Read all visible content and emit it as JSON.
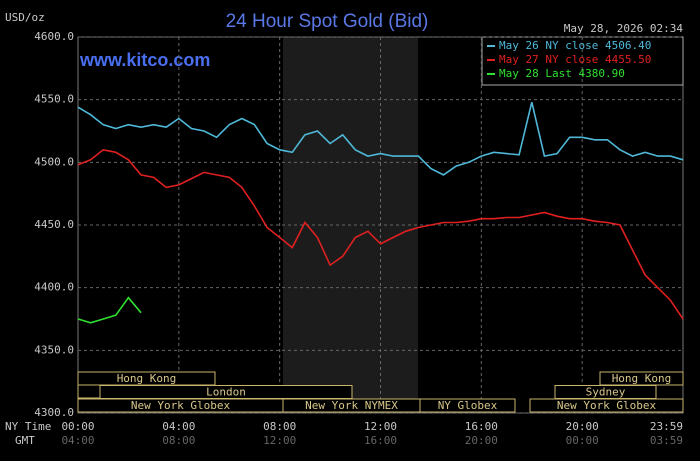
{
  "chart_data": {
    "type": "line",
    "title": "24 Hour Spot Gold (Bid)",
    "y_unit": "USD/oz",
    "website": "www.kitco.com",
    "timestamp": "May 28, 2026 02:34",
    "x": [
      0,
      0.5,
      1,
      1.5,
      2,
      2.5,
      3,
      3.5,
      4,
      4.5,
      5,
      5.5,
      6,
      6.5,
      7,
      7.5,
      8,
      8.5,
      9,
      9.5,
      10,
      10.5,
      11,
      11.5,
      12,
      12.5,
      13,
      13.5,
      14,
      14.5,
      15,
      15.5,
      16,
      16.5,
      17,
      17.5,
      18,
      18.5,
      19,
      19.5,
      20,
      20.5,
      21,
      21.5,
      22,
      22.5,
      23,
      23.5,
      24
    ],
    "series": [
      {
        "name": "May 26 NY close 4506.40",
        "color": "#4fb8d8",
        "values": [
          4544,
          4538,
          4530,
          4527,
          4530,
          4528,
          4530,
          4528,
          4535,
          4527,
          4525,
          4520,
          4530,
          4535,
          4530,
          4515,
          4510,
          4508,
          4522,
          4525,
          4515,
          4522,
          4510,
          4505,
          4507,
          4505,
          4505,
          4505,
          4495,
          4490,
          4497,
          4500,
          4505,
          4508,
          4507,
          4506,
          4548,
          4505,
          4507,
          4520,
          4520,
          4518,
          4518,
          4510,
          4505,
          4508,
          4505,
          4505,
          4502
        ]
      },
      {
        "name": "May 27 NY close 4455.50",
        "color": "#e02020",
        "values": [
          4498,
          4502,
          4510,
          4508,
          4502,
          4490,
          4488,
          4480,
          4482,
          4487,
          4492,
          4490,
          4488,
          4480,
          4465,
          4448,
          4440,
          4432,
          4452,
          4440,
          4418,
          4425,
          4440,
          4445,
          4435,
          4440,
          4445,
          4448,
          4450,
          4452,
          4452,
          4453,
          4455,
          4455,
          4456,
          4456,
          4458,
          4460,
          4457,
          4455,
          4455,
          4453,
          4452,
          4450,
          4430,
          4410,
          4400,
          4390,
          4375
        ]
      },
      {
        "name": "May 28 Last 4380.90",
        "color": "#30e030",
        "values": [
          4375,
          4372,
          4375,
          4378,
          4392,
          4380,
          null,
          null,
          null,
          null,
          null,
          null,
          null,
          null,
          null,
          null,
          null,
          null,
          null,
          null,
          null,
          null,
          null,
          null,
          null,
          null,
          null,
          null,
          null,
          null,
          null,
          null,
          null,
          null,
          null,
          null,
          null,
          null,
          null,
          null,
          null,
          null,
          null,
          null,
          null,
          null,
          null,
          null,
          null
        ]
      }
    ],
    "xlim": [
      0,
      24
    ],
    "ylim": [
      4300,
      4600
    ],
    "yticks": [
      {
        "value": 4300,
        "label": "4300.0"
      },
      {
        "value": 4350,
        "label": "4350.0"
      },
      {
        "value": 4400,
        "label": "4400.0"
      },
      {
        "value": 4450,
        "label": "4450.0"
      },
      {
        "value": 4500,
        "label": "4500.0"
      },
      {
        "value": 4550,
        "label": "4550.0"
      },
      {
        "value": 4600,
        "label": "4600.0"
      }
    ],
    "xticks": [
      {
        "value": 0,
        "label": "00:00"
      },
      {
        "value": 4,
        "label": "04:00"
      },
      {
        "value": 8,
        "label": "08:00"
      },
      {
        "value": 12,
        "label": "12:00"
      },
      {
        "value": 16,
        "label": "16:00"
      },
      {
        "value": 20,
        "label": "20:00"
      },
      {
        "value": 24,
        "label": "23:59"
      }
    ],
    "x_label": "NY Time",
    "x2_label": "GMT",
    "x2ticks": [
      {
        "value": 0,
        "label": "04:00"
      },
      {
        "value": 4,
        "label": "08:00"
      },
      {
        "value": 8,
        "label": "12:00"
      },
      {
        "value": 12,
        "label": "16:00"
      },
      {
        "value": 16,
        "label": "20:00"
      },
      {
        "value": 20,
        "label": "00:00"
      },
      {
        "value": 24,
        "label": "03:59"
      }
    ],
    "sessions": [
      "Hong Kong",
      "London",
      "New York Globex",
      "New York NYMEX",
      "NY Globex",
      "Sydney",
      "Hong Kong",
      "New York Globex"
    ],
    "grid": true
  }
}
